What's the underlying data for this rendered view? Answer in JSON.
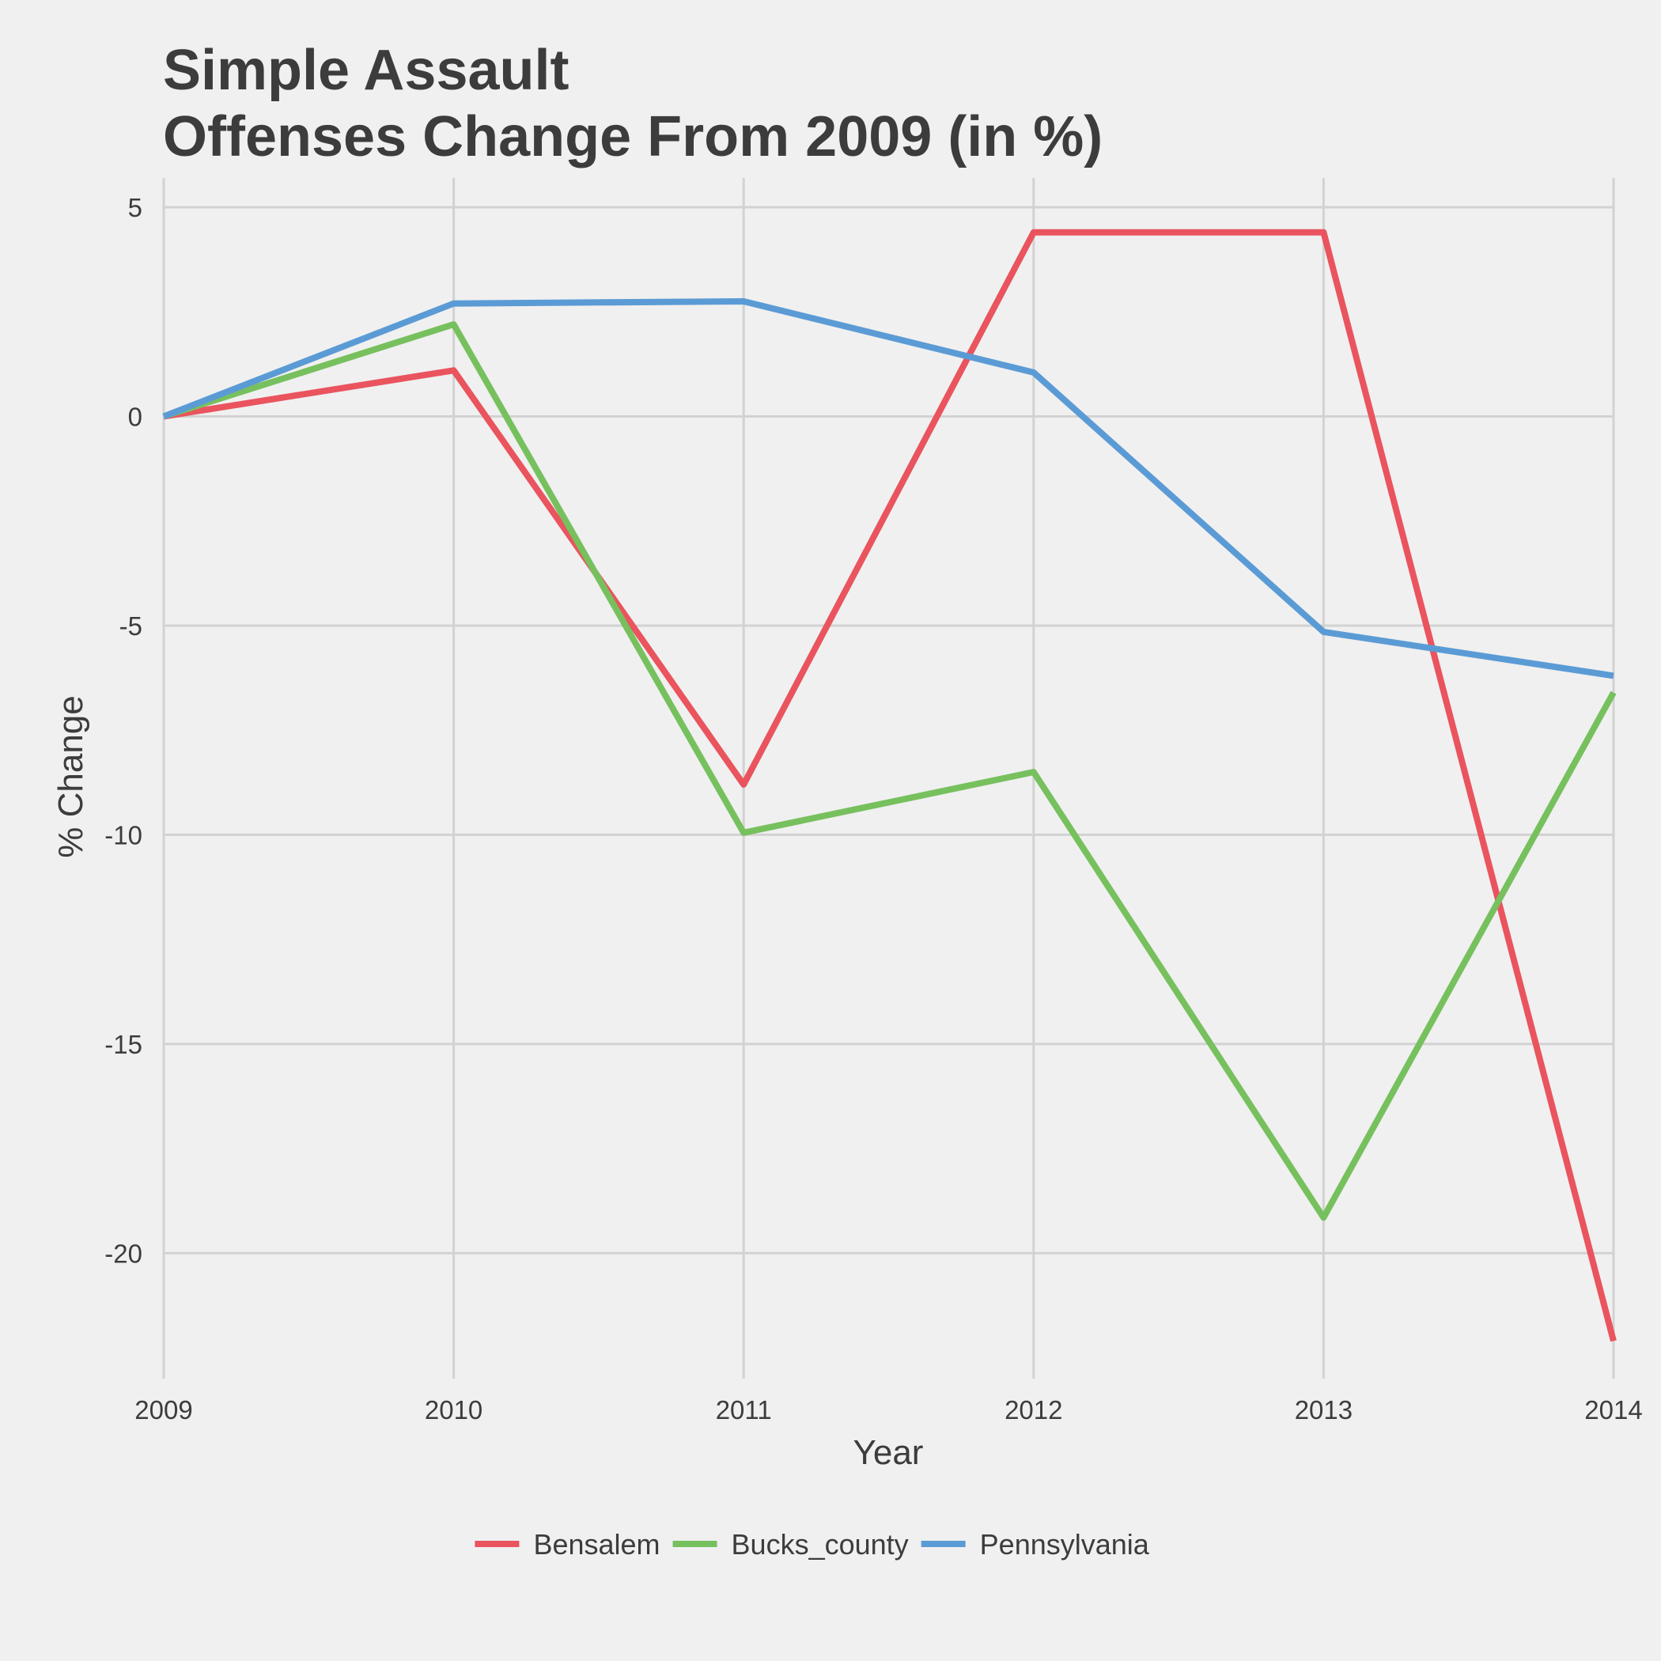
{
  "chart_data": {
    "type": "line",
    "title": [
      "Simple Assault",
      "Offenses Change From 2009 (in %)"
    ],
    "xlabel": "Year",
    "ylabel": "% Change",
    "x": [
      2009,
      2010,
      2011,
      2012,
      2013,
      2014
    ],
    "xlim": [
      2009,
      2014
    ],
    "ylim": [
      -23,
      5.7
    ],
    "yticks": [
      5,
      0,
      -5,
      -10,
      -15,
      -20
    ],
    "grid": true,
    "legend_position": "bottom",
    "series": [
      {
        "name": "Bensalem",
        "color": "#e9545e",
        "values": [
          0,
          1.1,
          -8.8,
          4.4,
          4.4,
          -22.1
        ]
      },
      {
        "name": "Bucks_county",
        "color": "#77c05e",
        "values": [
          0,
          2.2,
          -9.95,
          -8.5,
          -19.15,
          -6.6
        ]
      },
      {
        "name": "Pennsylvania",
        "color": "#5b9bd5",
        "values": [
          0,
          2.7,
          2.75,
          1.05,
          -5.15,
          -6.2
        ]
      }
    ]
  }
}
